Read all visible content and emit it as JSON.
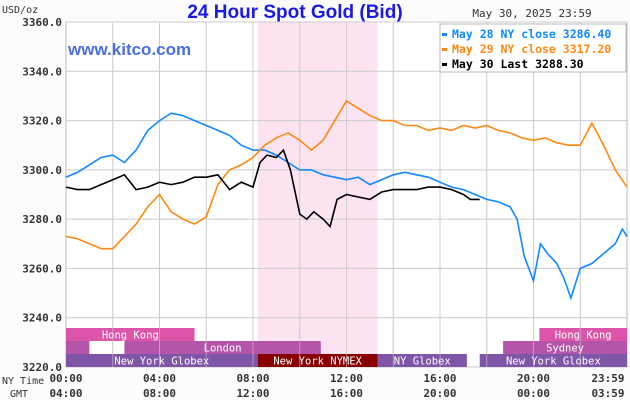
{
  "chart_data": {
    "type": "line",
    "title": "24 Hour Spot Gold (Bid)",
    "ylabel": "USD/oz",
    "date_label": "May 30, 2025 23:59",
    "watermark": "www.kitco.com",
    "ylim": [
      3220,
      3360
    ],
    "yticks": [
      "3360.0",
      "3340.0",
      "3320.0",
      "3300.0",
      "3280.0",
      "3260.0",
      "3240.0",
      "3220.0"
    ],
    "xlim_hours": [
      0,
      24
    ],
    "x_row_labels": {
      "ny": "NY Time",
      "gmt": "GMT"
    },
    "xticks_ny": [
      "00:00",
      "04:00",
      "08:00",
      "12:00",
      "16:00",
      "20:00",
      "23:59"
    ],
    "xticks_gmt": [
      "04:00",
      "08:00",
      "12:00",
      "16:00",
      "20:00",
      "00:00",
      "03:59"
    ],
    "grid": true,
    "legend_position": "top-right",
    "highlight_hours": [
      8.2,
      13.33
    ],
    "series": [
      {
        "name": "May 28 NY close 3286.40",
        "color": "#1188ff",
        "x": [
          0,
          0.5,
          1,
          1.5,
          2,
          2.5,
          3,
          3.5,
          4,
          4.5,
          5,
          5.5,
          6,
          6.5,
          7,
          7.5,
          8,
          8.5,
          9,
          9.5,
          10,
          10.5,
          11,
          11.5,
          12,
          12.5,
          13,
          13.5,
          14,
          14.5,
          15,
          15.5,
          16,
          16.5,
          17,
          17.5,
          18,
          18.5,
          19,
          19.3,
          19.6,
          20,
          20.3,
          20.6,
          21,
          21.3,
          21.6,
          22,
          22.5,
          23,
          23.5,
          23.8,
          24
        ],
        "y": [
          3297,
          3299,
          3302,
          3305,
          3306,
          3303,
          3308,
          3316,
          3320,
          3323,
          3322,
          3320,
          3318,
          3316,
          3314,
          3310,
          3308,
          3308,
          3306,
          3303,
          3300,
          3300,
          3298,
          3297,
          3296,
          3297,
          3294,
          3296,
          3298,
          3299,
          3298,
          3297,
          3295,
          3293,
          3292,
          3290,
          3288,
          3287,
          3285,
          3280,
          3265,
          3255,
          3270,
          3266,
          3262,
          3256,
          3248,
          3260,
          3262,
          3266,
          3270,
          3276,
          3273
        ]
      },
      {
        "name": "May 29 NY close 3317.20",
        "color": "#ff8811",
        "x": [
          0,
          0.5,
          1,
          1.5,
          2,
          2.5,
          3,
          3.5,
          4,
          4.5,
          5,
          5.5,
          6,
          6.5,
          7,
          7.5,
          8,
          8.5,
          9,
          9.5,
          10,
          10.5,
          11,
          11.5,
          12,
          12.5,
          13,
          13.5,
          14,
          14.5,
          15,
          15.5,
          16,
          16.5,
          17,
          17.5,
          18,
          18.5,
          19,
          19.5,
          20,
          20.5,
          21,
          21.5,
          22,
          22.5,
          23,
          23.5,
          24
        ],
        "y": [
          3273,
          3272,
          3270,
          3268,
          3268,
          3273,
          3278,
          3285,
          3290,
          3283,
          3280,
          3278,
          3281,
          3294,
          3300,
          3302,
          3305,
          3310,
          3313,
          3315,
          3312,
          3308,
          3312,
          3320,
          3328,
          3325,
          3322,
          3320,
          3320,
          3318,
          3318,
          3316,
          3317,
          3316,
          3318,
          3317,
          3318,
          3316,
          3315,
          3313,
          3312,
          3313,
          3311,
          3310,
          3310,
          3319,
          3310,
          3300,
          3293
        ]
      },
      {
        "name": "May 30 Last 3288.30",
        "color": "#000000",
        "x": [
          0,
          0.5,
          1,
          1.5,
          2,
          2.5,
          3,
          3.5,
          4,
          4.5,
          5,
          5.5,
          6,
          6.5,
          7,
          7.5,
          8,
          8.3,
          8.6,
          9,
          9.3,
          9.6,
          10,
          10.3,
          10.6,
          11,
          11.3,
          11.6,
          12,
          12.5,
          13,
          13.5,
          14,
          14.5,
          15,
          15.5,
          16,
          16.5,
          17,
          17.3,
          17.7
        ],
        "y": [
          3293,
          3292,
          3292,
          3294,
          3296,
          3298,
          3292,
          3293,
          3295,
          3294,
          3295,
          3297,
          3297,
          3298,
          3292,
          3295,
          3293,
          3303,
          3306,
          3305,
          3308,
          3300,
          3282,
          3280,
          3283,
          3280,
          3277,
          3288,
          3290,
          3289,
          3288,
          3291,
          3292,
          3292,
          3292,
          3293,
          3293,
          3292,
          3290,
          3288,
          3288
        ]
      }
    ],
    "sessions": [
      {
        "label": "Hong Kong",
        "row": 0,
        "from": 0,
        "to": 5.5,
        "color": "#dd55aa"
      },
      {
        "label": "Hong Kong",
        "row": 0,
        "from": 20.25,
        "to": 24,
        "color": "#dd55aa"
      },
      {
        "label": "",
        "row": 1,
        "from": 0,
        "to": 1,
        "color": "#b455aa"
      },
      {
        "label": "London",
        "row": 1,
        "from": 2.5,
        "to": 10.9,
        "color": "#b455aa"
      },
      {
        "label": "Sydney",
        "row": 1,
        "from": 18.7,
        "to": 24,
        "color": "#b455aa"
      },
      {
        "label": "New York Globex",
        "row": 2,
        "from": 0,
        "to": 8.2,
        "color": "#7f55a8"
      },
      {
        "label": "New York NYMEX",
        "row": 2,
        "from": 8.2,
        "to": 13.33,
        "color": "#880000"
      },
      {
        "label": "NY Globex",
        "row": 2,
        "from": 13.33,
        "to": 17.15,
        "color": "#7f55a8"
      },
      {
        "label": "New York Globex",
        "row": 2,
        "from": 17.7,
        "to": 24,
        "color": "#7f55a8"
      }
    ]
  }
}
